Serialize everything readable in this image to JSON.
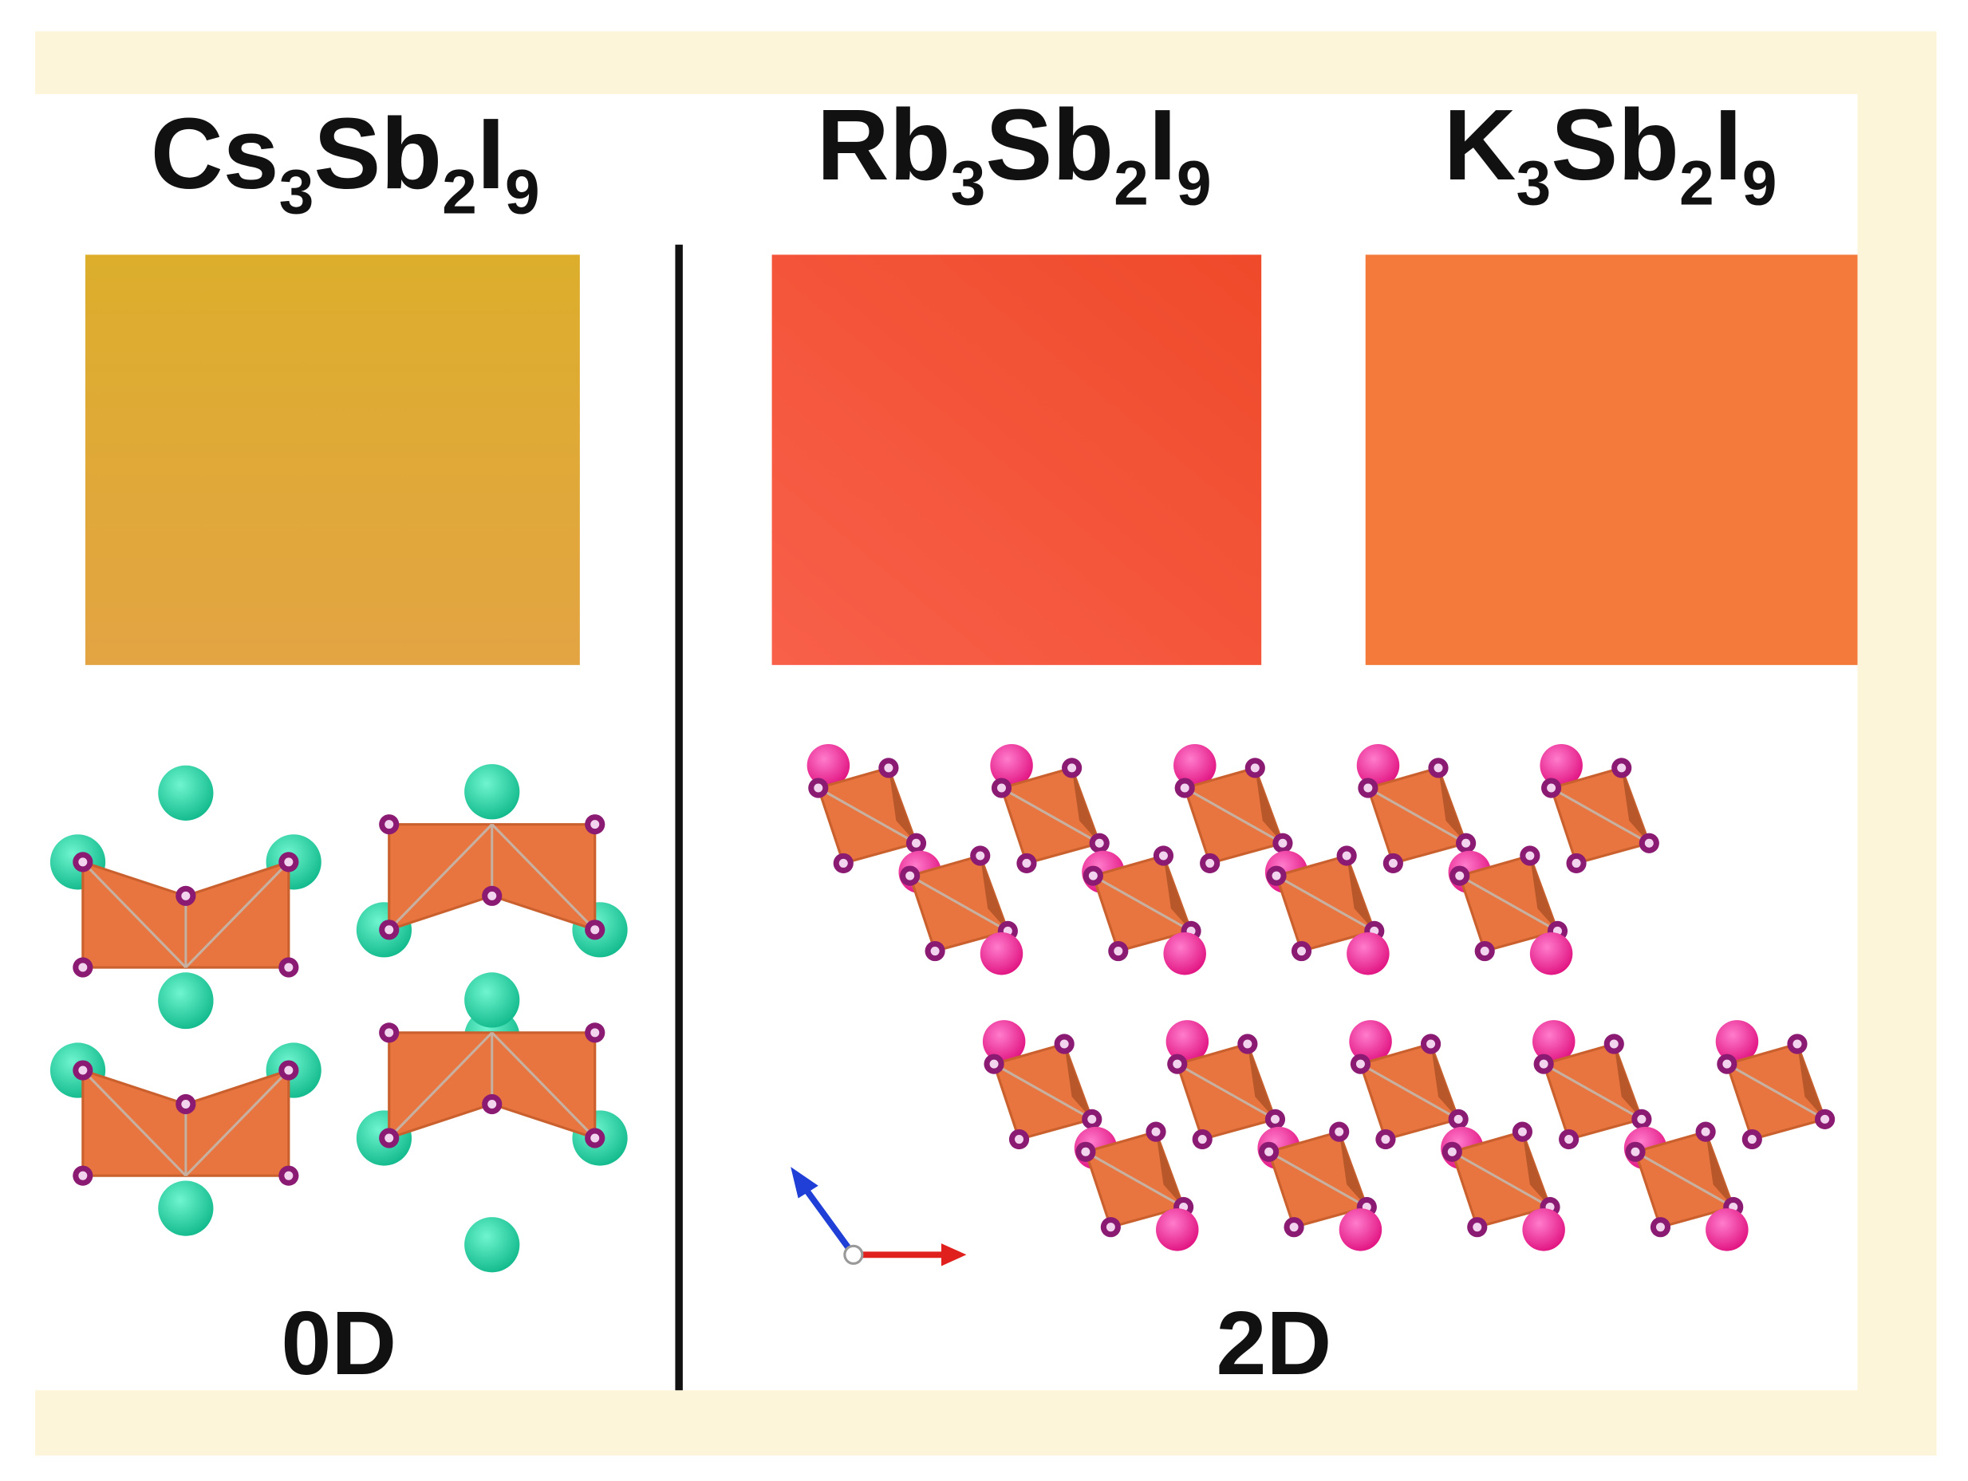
{
  "figure": {
    "compounds": [
      {
        "formula": [
          {
            "symbol": "Cs",
            "count": "3"
          },
          {
            "symbol": "Sb",
            "count": "2"
          },
          {
            "symbol": "I",
            "count": "9"
          }
        ]
      },
      {
        "formula": [
          {
            "symbol": "Rb",
            "count": "3"
          },
          {
            "symbol": "Sb",
            "count": "2"
          },
          {
            "symbol": "I",
            "count": "9"
          }
        ]
      },
      {
        "formula": [
          {
            "symbol": "K",
            "count": "3"
          },
          {
            "symbol": "Sb",
            "count": "2"
          },
          {
            "symbol": "I",
            "count": "9"
          }
        ]
      }
    ],
    "dimensionality": [
      "0D",
      "2D"
    ]
  }
}
